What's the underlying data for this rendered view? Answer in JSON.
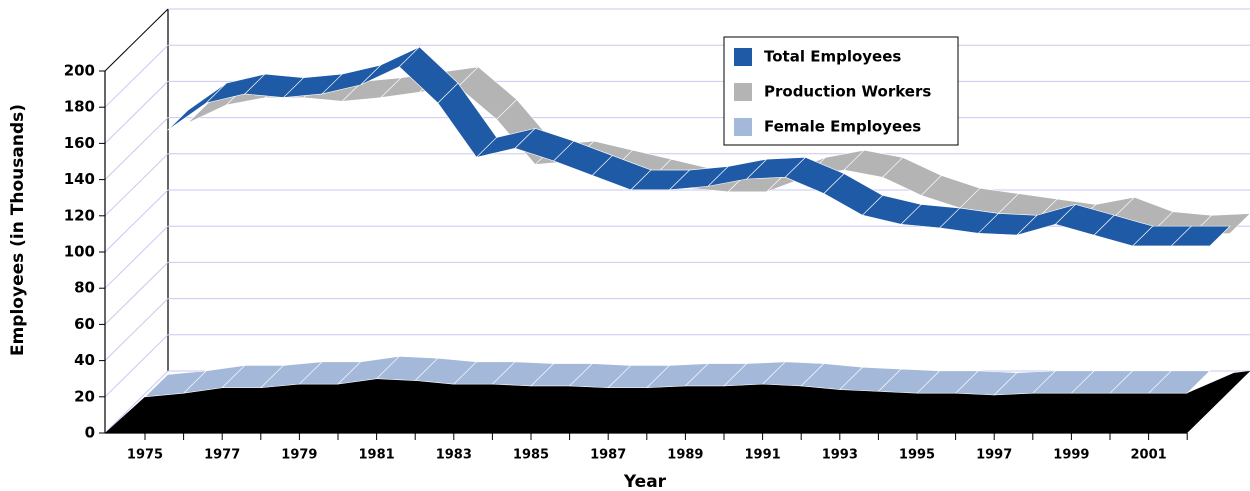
{
  "chart_data": {
    "type": "ribbon",
    "xlabel": "Year",
    "ylabel": "Employees (in Thousands)",
    "categories": [
      "1975",
      null,
      "1977",
      null,
      "1979",
      null,
      "1981",
      null,
      "1983",
      null,
      "1985",
      null,
      "1987",
      null,
      "1989",
      null,
      "1991",
      null,
      "1993",
      null,
      "1995",
      null,
      "1997",
      null,
      "1999",
      null,
      "2001",
      null
    ],
    "series": [
      {
        "name": "Total Employees",
        "color": "#1f5aa6",
        "values": [
          155,
          170,
          175,
          173,
          175,
          180,
          190,
          170,
          140,
          145,
          138,
          130,
          122,
          122,
          124,
          128,
          129,
          120,
          108,
          103,
          101,
          98,
          97,
          103,
          97,
          91,
          91,
          91
        ]
      },
      {
        "name": "Production Workers",
        "color": "#b4b4b4",
        "values": [
          148,
          158,
          162,
          162,
          160,
          162,
          165,
          168,
          150,
          125,
          127,
          122,
          117,
          112,
          110,
          110,
          118,
          122,
          118,
          108,
          101,
          98,
          95,
          92,
          96,
          88,
          86,
          87
        ]
      },
      {
        "name": "Female Employees",
        "color": "#a4b8d9",
        "values": [
          20,
          22,
          25,
          25,
          27,
          27,
          30,
          29,
          27,
          27,
          26,
          26,
          25,
          25,
          26,
          26,
          27,
          26,
          24,
          23,
          22,
          22,
          21,
          22,
          22,
          22,
          22,
          22
        ]
      }
    ],
    "ylim": [
      0,
      200
    ],
    "yticks": [
      0,
      20,
      40,
      60,
      80,
      100,
      120,
      140,
      160,
      180,
      200
    ],
    "grid": true,
    "legend": "upper right"
  }
}
